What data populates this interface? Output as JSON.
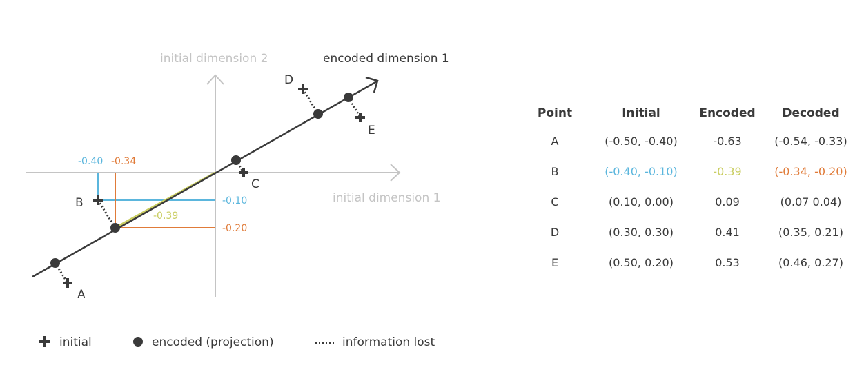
{
  "colors": {
    "dark": "#3a3a3a",
    "axis": "#c4c4c4",
    "blue": "#5bb6dd",
    "orange": "#e07b39",
    "yellowgreen": "#c9cd60"
  },
  "diagram": {
    "axis_x_label": "initial dimension 1",
    "axis_y_label": "initial dimension 2",
    "encoded_axis_label": "encoded dimension 1",
    "point_labels": [
      "A",
      "B",
      "C",
      "D",
      "E"
    ],
    "blue_x_value": "-0.40",
    "blue_y_value": "-0.10",
    "orange_x_value": "-0.34",
    "orange_y_value": "-0.20",
    "encoded_value": "-0.39"
  },
  "legend": {
    "initial": "initial",
    "encoded": "encoded (projection)",
    "lost": "information lost"
  },
  "table": {
    "headers": [
      "Point",
      "Initial",
      "Encoded",
      "Decoded"
    ],
    "rows": [
      [
        "A",
        "(-0.50, -0.40)",
        "-0.63",
        "(-0.54, -0.33)"
      ],
      [
        "B",
        "(-0.40, -0.10)",
        "-0.39",
        "(-0.34, -0.20)"
      ],
      [
        "C",
        "(0.10, 0.00)",
        "0.09",
        "(0.07 0.04)"
      ],
      [
        "D",
        "(0.30, 0.30)",
        "0.41",
        "(0.35, 0.21)"
      ],
      [
        "E",
        "(0.50, 0.20)",
        "0.53",
        "(0.46, 0.27)"
      ]
    ]
  }
}
